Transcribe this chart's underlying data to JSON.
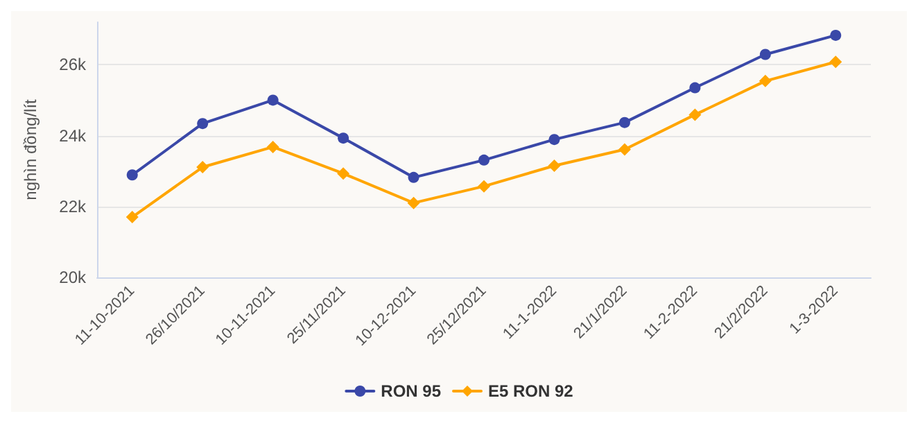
{
  "chart_data": {
    "type": "line",
    "ylabel": "nghìn đồng/lít",
    "categories": [
      "11-10-2021",
      "26/10/2021",
      "10-11-2021",
      "25/11/2021",
      "10-12-2021",
      "25/12/2021",
      "11-1-2022",
      "21/1/2022",
      "11-2-2022",
      "21/2/2022",
      "1-3-2022"
    ],
    "series": [
      {
        "name": "RON 95",
        "color": "#3a48a8",
        "marker": "circle",
        "values": [
          22890,
          24340,
          25000,
          23930,
          22820,
          23310,
          23890,
          24370,
          25350,
          26290,
          26830
        ]
      },
      {
        "name": "E5 RON 92",
        "color": "#ffa500",
        "marker": "diamond",
        "values": [
          21700,
          23110,
          23680,
          22930,
          22100,
          22570,
          23150,
          23610,
          24590,
          25540,
          26080
        ]
      }
    ],
    "yticks": [
      {
        "value": 20000,
        "label": "20k"
      },
      {
        "value": 22000,
        "label": "22k"
      },
      {
        "value": 24000,
        "label": "24k"
      },
      {
        "value": 26000,
        "label": "26k"
      }
    ],
    "ylim": [
      20000,
      27200
    ],
    "grid": "y",
    "legend": "bottom"
  }
}
